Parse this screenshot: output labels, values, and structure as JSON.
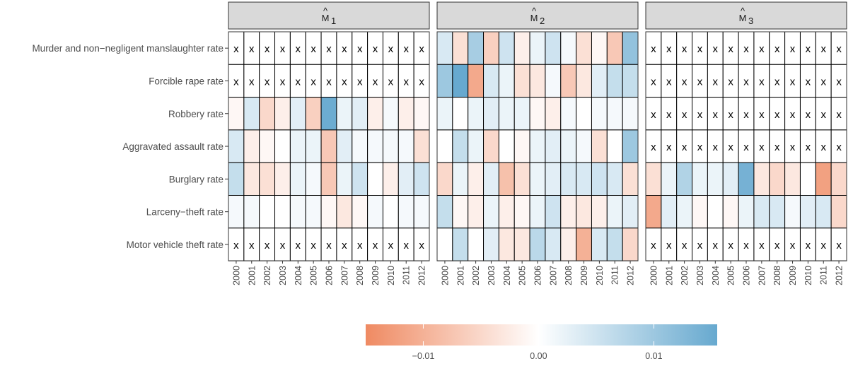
{
  "chart_data": {
    "type": "heatmap",
    "panels": [
      {
        "name": "M̂1",
        "base": "M",
        "hat": "^",
        "sub": "1"
      },
      {
        "name": "M̂2",
        "base": "M",
        "hat": "^",
        "sub": "2"
      },
      {
        "name": "M̂3",
        "base": "M",
        "hat": "^",
        "sub": "3"
      }
    ],
    "rows": [
      "Murder and non−negligent manslaughter rate",
      "Forcible rape rate",
      "Robbery rate",
      "Aggravated assault rate",
      "Burglary rate",
      "Larceny−theft rate",
      "Motor vehicle theft rate"
    ],
    "years": [
      "2000",
      "2001",
      "2002",
      "2003",
      "2004",
      "2005",
      "2006",
      "2007",
      "2008",
      "2009",
      "2010",
      "2011",
      "2012"
    ],
    "missing_marker": "x",
    "values": [
      [
        [
          null,
          null,
          null,
          null,
          null,
          null,
          null,
          null,
          null,
          null,
          null,
          null,
          null
        ],
        [
          null,
          null,
          null,
          null,
          null,
          null,
          null,
          null,
          null,
          null,
          null,
          null,
          null
        ],
        [
          -0.001,
          0.004,
          -0.005,
          -0.002,
          0.003,
          -0.006,
          0.015,
          0.002,
          0.003,
          -0.002,
          0.001,
          -0.002,
          -0.001
        ],
        [
          0.004,
          -0.002,
          -0.001,
          0.0,
          0.002,
          0.002,
          -0.007,
          0.003,
          0.001,
          0.001,
          0.001,
          0.001,
          -0.004
        ],
        [
          0.006,
          -0.003,
          -0.004,
          -0.002,
          0.002,
          0.001,
          -0.007,
          0.002,
          0.005,
          0.0,
          -0.002,
          0.003,
          0.005
        ],
        [
          0.001,
          0.001,
          0.0,
          0.0,
          0.001,
          0.001,
          -0.001,
          -0.003,
          -0.001,
          0.001,
          0.0,
          0.001,
          0.001
        ],
        [
          null,
          null,
          null,
          null,
          null,
          null,
          null,
          null,
          null,
          null,
          null,
          null,
          null
        ]
      ],
      [
        [
          0.004,
          -0.004,
          0.009,
          -0.006,
          0.005,
          -0.002,
          0.002,
          0.005,
          0.001,
          -0.004,
          -0.001,
          -0.007,
          0.011
        ],
        [
          0.01,
          0.016,
          -0.011,
          0.004,
          0.002,
          -0.004,
          -0.003,
          0.001,
          -0.007,
          -0.003,
          0.003,
          0.006,
          0.006
        ],
        [
          0.002,
          0.0,
          0.002,
          0.003,
          0.002,
          0.002,
          -0.001,
          -0.002,
          0.001,
          0.0,
          0.001,
          0.001,
          0.001
        ],
        [
          0.0,
          0.006,
          0.002,
          -0.005,
          0.0,
          -0.001,
          0.002,
          0.003,
          0.002,
          0.001,
          -0.004,
          0.0,
          0.01
        ],
        [
          -0.005,
          0.002,
          -0.002,
          0.003,
          -0.008,
          -0.004,
          0.002,
          0.003,
          0.004,
          0.004,
          0.005,
          0.004,
          -0.004
        ],
        [
          0.006,
          -0.001,
          -0.002,
          0.002,
          -0.002,
          -0.001,
          0.002,
          0.005,
          -0.002,
          -0.003,
          -0.002,
          0.002,
          0.003
        ],
        [
          0.0,
          0.006,
          0.0,
          0.003,
          -0.003,
          -0.003,
          0.007,
          0.004,
          -0.002,
          -0.01,
          0.004,
          0.006,
          -0.005
        ]
      ],
      [
        [
          null,
          null,
          null,
          null,
          null,
          null,
          null,
          null,
          null,
          null,
          null,
          null,
          null
        ],
        [
          null,
          null,
          null,
          null,
          null,
          null,
          null,
          null,
          null,
          null,
          null,
          null,
          null
        ],
        [
          null,
          null,
          null,
          null,
          null,
          null,
          null,
          null,
          null,
          null,
          null,
          null,
          null
        ],
        [
          null,
          null,
          null,
          null,
          null,
          null,
          null,
          null,
          null,
          null,
          null,
          null,
          null
        ],
        [
          -0.004,
          0.002,
          0.008,
          0.002,
          0.002,
          0.003,
          0.014,
          -0.003,
          -0.005,
          -0.003,
          0.0,
          -0.012,
          -0.005
        ],
        [
          -0.011,
          0.003,
          0.002,
          -0.001,
          0.0,
          -0.001,
          0.002,
          0.004,
          0.004,
          0.001,
          0.003,
          0.004,
          -0.005
        ],
        [
          null,
          null,
          null,
          null,
          null,
          null,
          null,
          null,
          null,
          null,
          null,
          null,
          null
        ]
      ]
    ],
    "colorbar": {
      "domain": [
        -0.015,
        0.0155
      ],
      "ticks": [
        -0.01,
        0.0,
        0.01
      ],
      "tick_labels": [
        "−0.01",
        "0.00",
        "0.01"
      ],
      "low_color": "#EF8A62",
      "mid_color": "#FFFFFF",
      "high_color": "#67A9CF"
    },
    "strip_color": "#D9D9D9"
  }
}
